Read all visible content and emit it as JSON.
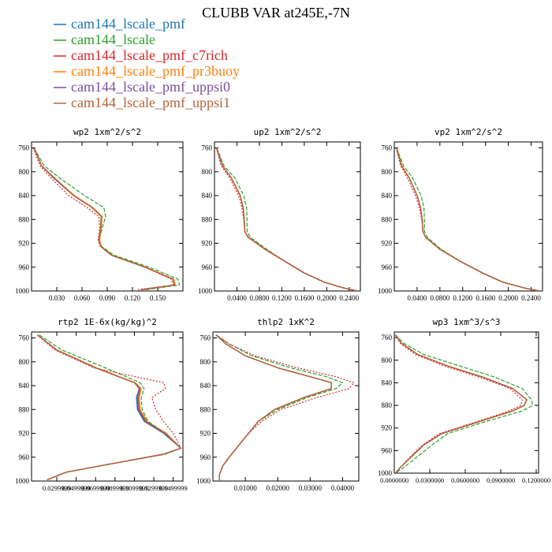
{
  "figure": {
    "title": "CLUBB VAR at245E,-7N"
  },
  "legend": [
    {
      "label": "cam144_lscale_pmf",
      "color": "#1f77b4"
    },
    {
      "label": "cam144_lscale",
      "color": "#2ca02c"
    },
    {
      "label": "cam144_lscale_pmf_c7rich",
      "color": "#d62728"
    },
    {
      "label": "cam144_lscale_pmf_pr3buoy",
      "color": "#ff7f0e"
    },
    {
      "label": "cam144_lscale_pmf_uppsi0",
      "color": "#7b4fa0"
    },
    {
      "label": "cam144_lscale_pmf_uppsi1",
      "color": "#b5623a"
    }
  ],
  "chart_data": [
    {
      "type": "line",
      "title": "wp2  1xm^2/s^2",
      "ylim": [
        1000,
        750
      ],
      "yticks": [
        760,
        800,
        840,
        880,
        920,
        960,
        1000
      ],
      "ytick_labels": [
        "760",
        "800",
        "840",
        "880",
        "920",
        "960",
        "1000"
      ],
      "xlim": [
        0,
        0.18
      ],
      "xticks": [
        0.03,
        0.06,
        0.09,
        0.12,
        0.15
      ],
      "xtick_labels": [
        "0.030",
        "0.060",
        "0.090",
        "0.120",
        "0.150"
      ],
      "y": [
        760,
        790,
        810,
        840,
        860,
        875,
        895,
        915,
        925,
        940,
        960,
        980,
        990,
        998
      ],
      "series": [
        {
          "name": "cam144_lscale_pmf",
          "values": [
            0.003,
            0.012,
            0.026,
            0.05,
            0.072,
            0.083,
            0.082,
            0.08,
            0.082,
            0.095,
            0.135,
            0.168,
            0.17,
            0.13
          ]
        },
        {
          "name": "cam144_lscale",
          "values": [
            0.003,
            0.015,
            0.033,
            0.063,
            0.086,
            0.088,
            0.084,
            0.08,
            0.083,
            0.098,
            0.14,
            0.174,
            0.176,
            0.135
          ]
        },
        {
          "name": "cam144_lscale_pmf_c7rich",
          "values": [
            0.002,
            0.01,
            0.023,
            0.044,
            0.066,
            0.08,
            0.081,
            0.079,
            0.082,
            0.095,
            0.135,
            0.166,
            0.168,
            0.125
          ]
        },
        {
          "name": "cam144_lscale_pmf_pr3buoy",
          "values": [
            0.003,
            0.012,
            0.027,
            0.051,
            0.073,
            0.084,
            0.083,
            0.081,
            0.083,
            0.096,
            0.136,
            0.169,
            0.171,
            0.131
          ]
        },
        {
          "name": "cam144_lscale_pmf_uppsi0",
          "values": [
            0.003,
            0.012,
            0.026,
            0.05,
            0.072,
            0.083,
            0.082,
            0.08,
            0.082,
            0.095,
            0.135,
            0.168,
            0.17,
            0.13
          ]
        },
        {
          "name": "cam144_lscale_pmf_uppsi1",
          "values": [
            0.003,
            0.012,
            0.027,
            0.05,
            0.072,
            0.083,
            0.082,
            0.08,
            0.082,
            0.095,
            0.135,
            0.168,
            0.17,
            0.13
          ]
        }
      ]
    },
    {
      "type": "line",
      "title": "up2  1xm^2/s^2",
      "ylim": [
        1000,
        750
      ],
      "yticks": [
        760,
        800,
        840,
        880,
        920,
        960,
        1000
      ],
      "ytick_labels": [
        "760",
        "800",
        "840",
        "880",
        "920",
        "960",
        "1000"
      ],
      "xlim": [
        0,
        0.26
      ],
      "xticks": [
        0.04,
        0.08,
        0.12,
        0.16,
        0.2,
        0.24
      ],
      "xtick_labels": [
        "0.0400",
        "0.0800",
        "0.1200",
        "0.1600",
        "0.2000",
        "0.2400"
      ],
      "y": [
        760,
        790,
        810,
        840,
        860,
        880,
        900,
        910,
        930,
        950,
        970,
        985,
        995,
        1000
      ],
      "series": [
        {
          "name": "cam144_lscale_pmf",
          "values": [
            0.004,
            0.014,
            0.03,
            0.046,
            0.051,
            0.053,
            0.054,
            0.06,
            0.09,
            0.125,
            0.16,
            0.195,
            0.23,
            0.255
          ]
        },
        {
          "name": "cam144_lscale",
          "values": [
            0.004,
            0.017,
            0.036,
            0.052,
            0.057,
            0.058,
            0.058,
            0.064,
            0.093,
            0.125,
            0.16,
            0.195,
            0.23,
            0.255
          ]
        },
        {
          "name": "cam144_lscale_pmf_c7rich",
          "values": [
            0.003,
            0.012,
            0.027,
            0.043,
            0.049,
            0.052,
            0.054,
            0.061,
            0.091,
            0.126,
            0.161,
            0.196,
            0.23,
            0.255
          ]
        },
        {
          "name": "cam144_lscale_pmf_pr3buoy",
          "values": [
            0.004,
            0.014,
            0.03,
            0.046,
            0.051,
            0.053,
            0.054,
            0.06,
            0.09,
            0.125,
            0.16,
            0.195,
            0.23,
            0.255
          ]
        },
        {
          "name": "cam144_lscale_pmf_uppsi0",
          "values": [
            0.004,
            0.014,
            0.03,
            0.046,
            0.051,
            0.053,
            0.054,
            0.06,
            0.09,
            0.125,
            0.16,
            0.195,
            0.23,
            0.255
          ]
        },
        {
          "name": "cam144_lscale_pmf_uppsi1",
          "values": [
            0.004,
            0.014,
            0.03,
            0.046,
            0.051,
            0.053,
            0.054,
            0.06,
            0.09,
            0.125,
            0.16,
            0.195,
            0.23,
            0.255
          ]
        }
      ]
    },
    {
      "type": "line",
      "title": "vp2  1xm^2/s^2",
      "ylim": [
        1000,
        750
      ],
      "yticks": [
        760,
        800,
        840,
        880,
        920,
        960,
        1000
      ],
      "ytick_labels": [
        "760",
        "800",
        "840",
        "880",
        "920",
        "960",
        "1000"
      ],
      "xlim": [
        0,
        0.26
      ],
      "xticks": [
        0.04,
        0.08,
        0.12,
        0.16,
        0.2,
        0.24
      ],
      "xtick_labels": [
        "0.0400",
        "0.0800",
        "0.1200",
        "0.1600",
        "0.2000",
        "0.2400"
      ],
      "y": [
        760,
        790,
        810,
        840,
        860,
        880,
        900,
        910,
        930,
        950,
        970,
        985,
        995,
        1000
      ],
      "series": [
        {
          "name": "cam144_lscale_pmf",
          "values": [
            0.004,
            0.013,
            0.026,
            0.04,
            0.046,
            0.049,
            0.05,
            0.055,
            0.08,
            0.115,
            0.155,
            0.19,
            0.228,
            0.255
          ]
        },
        {
          "name": "cam144_lscale",
          "values": [
            0.004,
            0.016,
            0.032,
            0.047,
            0.052,
            0.053,
            0.053,
            0.058,
            0.082,
            0.116,
            0.156,
            0.19,
            0.228,
            0.255
          ]
        },
        {
          "name": "cam144_lscale_pmf_c7rich",
          "values": [
            0.003,
            0.011,
            0.023,
            0.037,
            0.044,
            0.048,
            0.05,
            0.055,
            0.08,
            0.115,
            0.155,
            0.19,
            0.228,
            0.255
          ]
        },
        {
          "name": "cam144_lscale_pmf_pr3buoy",
          "values": [
            0.004,
            0.013,
            0.026,
            0.04,
            0.046,
            0.049,
            0.05,
            0.055,
            0.08,
            0.115,
            0.155,
            0.19,
            0.228,
            0.255
          ]
        },
        {
          "name": "cam144_lscale_pmf_uppsi0",
          "values": [
            0.004,
            0.013,
            0.026,
            0.04,
            0.046,
            0.049,
            0.05,
            0.055,
            0.08,
            0.115,
            0.155,
            0.19,
            0.228,
            0.255
          ]
        },
        {
          "name": "cam144_lscale_pmf_uppsi1",
          "values": [
            0.004,
            0.013,
            0.026,
            0.04,
            0.046,
            0.049,
            0.05,
            0.055,
            0.08,
            0.115,
            0.155,
            0.19,
            0.228,
            0.255
          ]
        }
      ]
    },
    {
      "type": "line",
      "title": "rtp2  1E-6x(kg/kg)^2",
      "ylim": [
        1000,
        750
      ],
      "yticks": [
        760,
        800,
        840,
        880,
        920,
        960,
        1000
      ],
      "ytick_labels": [
        "760",
        "800",
        "840",
        "880",
        "920",
        "960",
        "1000"
      ],
      "xlim": [
        0.004,
        0.16
      ],
      "xticks": [
        0.029999,
        0.049999,
        0.069999,
        0.089999,
        0.109999,
        0.129999,
        0.149999
      ],
      "xtick_labels": [
        "0.0299999",
        "0.0499999",
        "0.0699999",
        "0.0899999",
        "0.1099999",
        "0.1299999",
        "0.1499999"
      ],
      "y": [
        755,
        780,
        810,
        835,
        845,
        860,
        880,
        900,
        920,
        945,
        955,
        970,
        985,
        998
      ],
      "series": [
        {
          "name": "cam144_lscale_pmf",
          "values": [
            0.01,
            0.03,
            0.07,
            0.11,
            0.115,
            0.112,
            0.113,
            0.12,
            0.14,
            0.158,
            0.14,
            0.09,
            0.04,
            0.02
          ]
        },
        {
          "name": "cam144_lscale",
          "values": [
            0.012,
            0.035,
            0.08,
            0.116,
            0.12,
            0.117,
            0.118,
            0.124,
            0.142,
            0.158,
            0.142,
            0.09,
            0.04,
            0.02
          ]
        },
        {
          "name": "cam144_lscale_pmf_c7rich",
          "values": [
            0.01,
            0.028,
            0.068,
            0.14,
            0.142,
            0.128,
            0.132,
            0.14,
            0.15,
            0.158,
            0.14,
            0.09,
            0.04,
            0.02
          ]
        },
        {
          "name": "cam144_lscale_pmf_pr3buoy",
          "values": [
            0.01,
            0.03,
            0.071,
            0.111,
            0.117,
            0.115,
            0.116,
            0.123,
            0.143,
            0.158,
            0.14,
            0.09,
            0.04,
            0.02
          ]
        },
        {
          "name": "cam144_lscale_pmf_uppsi0",
          "values": [
            0.01,
            0.03,
            0.07,
            0.11,
            0.115,
            0.113,
            0.114,
            0.121,
            0.141,
            0.158,
            0.14,
            0.09,
            0.04,
            0.02
          ]
        },
        {
          "name": "cam144_lscale_pmf_uppsi1",
          "values": [
            0.01,
            0.03,
            0.07,
            0.11,
            0.116,
            0.114,
            0.115,
            0.122,
            0.142,
            0.158,
            0.14,
            0.09,
            0.04,
            0.02
          ]
        }
      ]
    },
    {
      "type": "line",
      "title": "thlp2  1xK^2",
      "ylim": [
        1000,
        750
      ],
      "yticks": [
        760,
        800,
        840,
        880,
        920,
        960,
        1000
      ],
      "ytick_labels": [
        "760",
        "800",
        "840",
        "880",
        "920",
        "960",
        "1000"
      ],
      "xlim": [
        0,
        0.045
      ],
      "xticks": [
        0.01,
        0.02,
        0.03,
        0.04
      ],
      "xtick_labels": [
        "0.01000",
        "0.02000",
        "0.03000",
        "0.04000"
      ],
      "y": [
        755,
        770,
        790,
        810,
        825,
        835,
        845,
        860,
        880,
        900,
        920,
        940,
        960,
        975,
        990,
        1000
      ],
      "series": [
        {
          "name": "cam144_lscale_pmf",
          "values": [
            0.001,
            0.004,
            0.01,
            0.02,
            0.03,
            0.0365,
            0.0365,
            0.028,
            0.019,
            0.014,
            0.011,
            0.008,
            0.005,
            0.003,
            0.002,
            0.002
          ]
        },
        {
          "name": "cam144_lscale",
          "values": [
            0.001,
            0.005,
            0.012,
            0.024,
            0.035,
            0.04,
            0.038,
            0.029,
            0.02,
            0.014,
            0.011,
            0.008,
            0.005,
            0.003,
            0.002,
            0.002
          ]
        },
        {
          "name": "cam144_lscale_pmf_c7rich",
          "values": [
            0.001,
            0.005,
            0.013,
            0.026,
            0.038,
            0.0435,
            0.042,
            0.032,
            0.021,
            0.015,
            0.011,
            0.008,
            0.005,
            0.003,
            0.002,
            0.002
          ]
        },
        {
          "name": "cam144_lscale_pmf_pr3buoy",
          "values": [
            0.001,
            0.004,
            0.01,
            0.02,
            0.03,
            0.0365,
            0.0365,
            0.028,
            0.019,
            0.014,
            0.011,
            0.008,
            0.005,
            0.003,
            0.002,
            0.002
          ]
        },
        {
          "name": "cam144_lscale_pmf_uppsi0",
          "values": [
            0.001,
            0.004,
            0.01,
            0.02,
            0.03,
            0.0365,
            0.0365,
            0.028,
            0.019,
            0.014,
            0.011,
            0.008,
            0.005,
            0.003,
            0.002,
            0.002
          ]
        },
        {
          "name": "cam144_lscale_pmf_uppsi1",
          "values": [
            0.001,
            0.004,
            0.01,
            0.02,
            0.03,
            0.0365,
            0.0365,
            0.028,
            0.019,
            0.014,
            0.011,
            0.008,
            0.005,
            0.003,
            0.002,
            0.002
          ]
        }
      ]
    },
    {
      "type": "line",
      "title": "wp3  1xm^3/s^3",
      "ylim": [
        1000,
        750
      ],
      "yticks": [
        760,
        800,
        840,
        880,
        920,
        960,
        1000
      ],
      "ytick_labels": [
        "760",
        "800",
        "840",
        "880",
        "920",
        "960",
        "1000"
      ],
      "xlim": [
        0,
        0.122
      ],
      "xticks": [
        0,
        0.03,
        0.06,
        0.09,
        0.12
      ],
      "xtick_labels": [
        "0.0000000",
        "0.0300000",
        "0.0600000",
        "0.0900000",
        "0.1200000"
      ],
      "y": [
        755,
        770,
        790,
        810,
        830,
        850,
        870,
        880,
        890,
        910,
        930,
        950,
        970,
        990,
        1000
      ],
      "series": [
        {
          "name": "cam144_lscale_pmf",
          "values": [
            0.001,
            0.006,
            0.02,
            0.045,
            0.075,
            0.1,
            0.112,
            0.11,
            0.1,
            0.07,
            0.04,
            0.025,
            0.015,
            0.005,
            0.001
          ]
        },
        {
          "name": "cam144_lscale",
          "values": [
            0.001,
            0.008,
            0.025,
            0.055,
            0.085,
            0.108,
            0.116,
            0.117,
            0.108,
            0.075,
            0.045,
            0.032,
            0.02,
            0.008,
            0.001
          ]
        },
        {
          "name": "cam144_lscale_pmf_c7rich",
          "values": [
            0.001,
            0.005,
            0.018,
            0.042,
            0.072,
            0.098,
            0.108,
            0.107,
            0.097,
            0.068,
            0.038,
            0.024,
            0.014,
            0.005,
            0.001
          ]
        },
        {
          "name": "cam144_lscale_pmf_pr3buoy",
          "values": [
            0.001,
            0.006,
            0.02,
            0.045,
            0.075,
            0.1,
            0.112,
            0.11,
            0.1,
            0.07,
            0.04,
            0.025,
            0.015,
            0.005,
            0.001
          ]
        },
        {
          "name": "cam144_lscale_pmf_uppsi0",
          "values": [
            0.001,
            0.006,
            0.02,
            0.045,
            0.075,
            0.1,
            0.112,
            0.11,
            0.1,
            0.07,
            0.04,
            0.025,
            0.015,
            0.005,
            0.001
          ]
        },
        {
          "name": "cam144_lscale_pmf_uppsi1",
          "values": [
            0.001,
            0.006,
            0.02,
            0.045,
            0.075,
            0.1,
            0.112,
            0.11,
            0.1,
            0.07,
            0.04,
            0.025,
            0.015,
            0.005,
            0.001
          ]
        }
      ]
    }
  ]
}
